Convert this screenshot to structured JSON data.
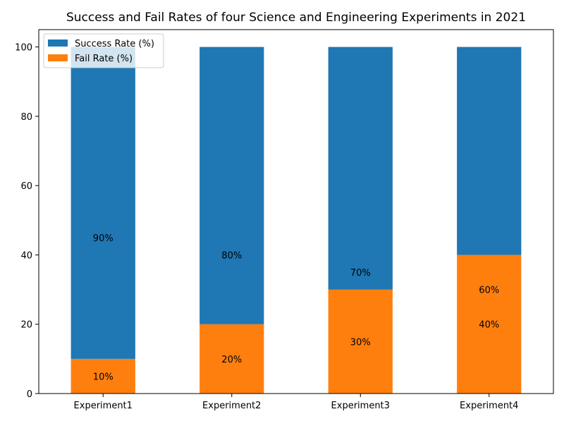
{
  "chart_data": {
    "type": "bar",
    "stacked": true,
    "title": "Success and Fail Rates of four Science and Engineering Experiments in 2021",
    "xlabel": "",
    "ylabel": "",
    "categories": [
      "Experiment1",
      "Experiment2",
      "Experiment3",
      "Experiment4"
    ],
    "ylim": [
      0,
      105
    ],
    "yticks": [
      0,
      20,
      40,
      60,
      80,
      100
    ],
    "grid": false,
    "legend_position": "top-left",
    "series": [
      {
        "name": "Fail Rate (%)",
        "color": "#ff7f0e",
        "values": [
          10,
          20,
          30,
          40
        ],
        "labels": [
          "10%",
          "20%",
          "30%",
          "40%"
        ]
      },
      {
        "name": "Success Rate (%)",
        "color": "#1f77b4",
        "values": [
          90,
          80,
          70,
          60
        ],
        "labels": [
          "90%",
          "80%",
          "70%",
          "60%"
        ]
      }
    ],
    "legend_order": [
      "Success Rate (%)",
      "Fail Rate (%)"
    ]
  }
}
